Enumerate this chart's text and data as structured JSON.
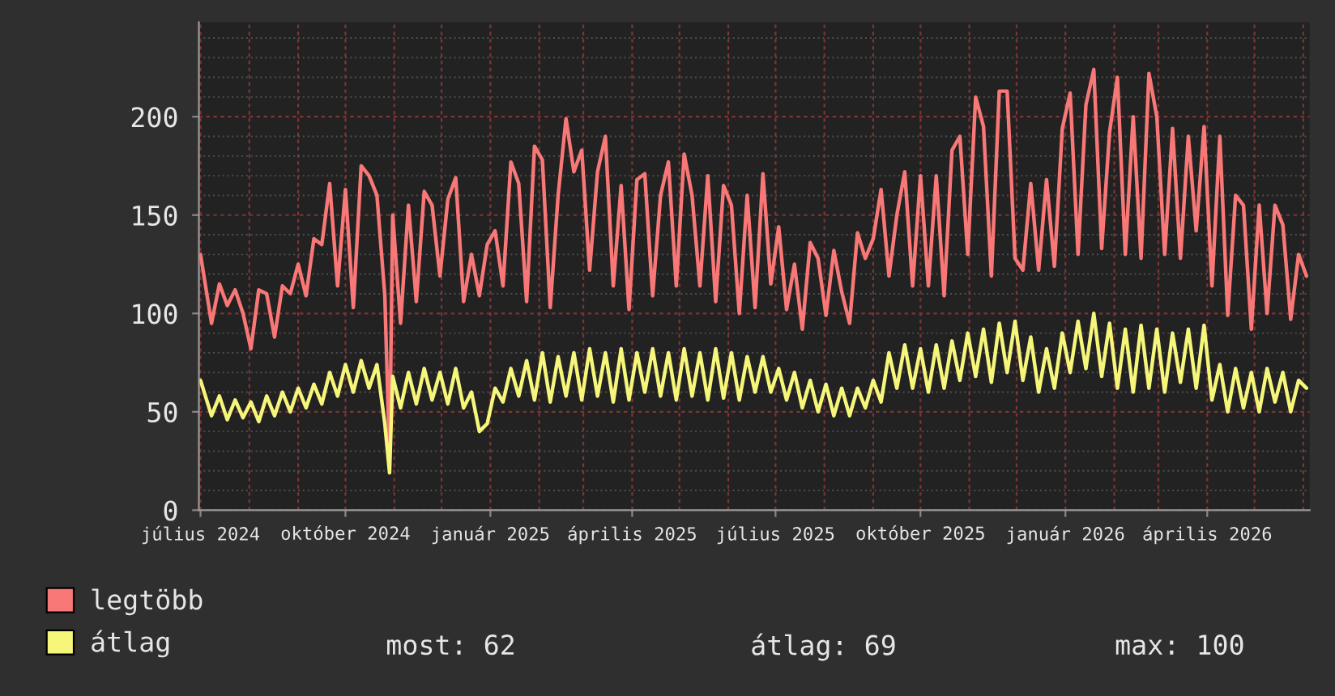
{
  "chart_data": {
    "type": "line",
    "x": [
      "2024-07-01",
      "2024-07-08",
      "2024-07-13",
      "2024-07-18",
      "2024-07-23",
      "2024-07-28",
      "2024-08-02",
      "2024-08-07",
      "2024-08-12",
      "2024-08-17",
      "2024-08-22",
      "2024-08-27",
      "2024-09-01",
      "2024-09-06",
      "2024-09-11",
      "2024-09-16",
      "2024-09-21",
      "2024-09-26",
      "2024-10-01",
      "2024-10-06",
      "2024-10-11",
      "2024-10-16",
      "2024-10-21",
      "2024-10-26",
      "2024-10-29",
      "2024-10-31",
      "2024-11-05",
      "2024-11-10",
      "2024-11-15",
      "2024-11-20",
      "2024-11-25",
      "2024-11-30",
      "2024-12-05",
      "2024-12-10",
      "2024-12-15",
      "2024-12-20",
      "2024-12-25",
      "2024-12-30",
      "2025-01-04",
      "2025-01-09",
      "2025-01-14",
      "2025-01-19",
      "2025-01-24",
      "2025-01-29",
      "2025-02-03",
      "2025-02-08",
      "2025-02-13",
      "2025-02-18",
      "2025-02-23",
      "2025-02-28",
      "2025-03-05",
      "2025-03-10",
      "2025-03-15",
      "2025-03-20",
      "2025-03-25",
      "2025-03-30",
      "2025-04-04",
      "2025-04-09",
      "2025-04-14",
      "2025-04-19",
      "2025-04-24",
      "2025-04-29",
      "2025-05-04",
      "2025-05-09",
      "2025-05-14",
      "2025-05-19",
      "2025-05-24",
      "2025-05-29",
      "2025-06-03",
      "2025-06-08",
      "2025-06-13",
      "2025-06-18",
      "2025-06-23",
      "2025-06-28",
      "2025-07-03",
      "2025-07-08",
      "2025-07-13",
      "2025-07-18",
      "2025-07-23",
      "2025-07-28",
      "2025-08-02",
      "2025-08-07",
      "2025-08-12",
      "2025-08-17",
      "2025-08-22",
      "2025-08-27",
      "2025-09-01",
      "2025-09-06",
      "2025-09-11",
      "2025-09-16",
      "2025-09-21",
      "2025-09-26",
      "2025-10-01",
      "2025-10-06",
      "2025-10-11",
      "2025-10-16",
      "2025-10-21",
      "2025-10-26",
      "2025-10-31",
      "2025-11-05",
      "2025-11-10",
      "2025-11-15",
      "2025-11-20",
      "2025-11-25",
      "2025-11-30",
      "2025-12-05",
      "2025-12-10",
      "2025-12-15",
      "2025-12-20",
      "2025-12-25",
      "2025-12-30",
      "2026-01-04",
      "2026-01-09",
      "2026-01-14",
      "2026-01-19",
      "2026-01-24",
      "2026-01-29",
      "2026-02-03",
      "2026-02-08",
      "2026-02-13",
      "2026-02-18",
      "2026-02-23",
      "2026-02-28",
      "2026-03-05",
      "2026-03-10",
      "2026-03-15",
      "2026-03-20",
      "2026-03-25",
      "2026-03-30",
      "2026-04-04",
      "2026-04-09",
      "2026-04-14",
      "2026-04-19",
      "2026-04-24",
      "2026-04-29",
      "2026-05-04",
      "2026-05-09",
      "2026-05-14",
      "2026-05-19",
      "2026-05-24",
      "2026-05-29",
      "2026-06-03"
    ],
    "series": [
      {
        "name": "legtöbb",
        "color": "#f87777",
        "values": [
          130,
          95,
          115,
          104,
          112,
          100,
          82,
          112,
          110,
          88,
          114,
          110,
          125,
          109,
          138,
          135,
          166,
          114,
          163,
          103,
          175,
          170,
          160,
          109,
          26,
          150,
          95,
          155,
          106,
          162,
          155,
          119,
          158,
          169,
          106,
          130,
          109,
          135,
          142,
          114,
          177,
          166,
          106,
          185,
          178,
          103,
          160,
          199,
          172,
          183,
          122,
          172,
          190,
          114,
          165,
          102,
          168,
          171,
          109,
          160,
          177,
          114,
          181,
          160,
          114,
          170,
          106,
          165,
          155,
          100,
          160,
          103,
          171,
          115,
          144,
          102,
          125,
          92,
          136,
          128,
          99,
          132,
          111,
          95,
          141,
          128,
          138,
          163,
          119,
          150,
          172,
          114,
          170,
          114,
          170,
          109,
          183,
          190,
          130,
          210,
          195,
          119,
          213,
          213,
          128,
          122,
          166,
          122,
          168,
          124,
          194,
          212,
          130,
          206,
          224,
          133,
          192,
          220,
          130,
          200,
          128,
          222,
          200,
          130,
          194,
          128,
          190,
          142,
          195,
          114,
          190,
          99,
          160,
          155,
          92,
          155,
          100,
          155,
          145,
          97,
          130,
          119
        ]
      },
      {
        "name": "átlag",
        "color": "#f6f67a",
        "values": [
          66,
          48,
          58,
          46,
          56,
          47,
          55,
          45,
          58,
          48,
          60,
          50,
          62,
          52,
          64,
          54,
          70,
          58,
          74,
          60,
          76,
          62,
          74,
          44,
          19,
          68,
          52,
          70,
          54,
          72,
          56,
          70,
          54,
          72,
          52,
          60,
          40,
          44,
          62,
          55,
          72,
          58,
          76,
          56,
          80,
          55,
          78,
          58,
          80,
          56,
          82,
          58,
          80,
          55,
          82,
          56,
          80,
          60,
          82,
          58,
          80,
          56,
          82,
          58,
          80,
          56,
          82,
          57,
          80,
          56,
          78,
          60,
          78,
          60,
          72,
          56,
          70,
          52,
          66,
          50,
          64,
          48,
          62,
          48,
          62,
          52,
          66,
          55,
          80,
          62,
          84,
          62,
          82,
          60,
          84,
          62,
          86,
          66,
          90,
          68,
          92,
          65,
          95,
          70,
          96,
          66,
          88,
          60,
          82,
          62,
          90,
          70,
          96,
          72,
          100,
          68,
          95,
          62,
          92,
          60,
          94,
          62,
          92,
          60,
          90,
          65,
          92,
          62,
          94,
          56,
          74,
          50,
          72,
          52,
          70,
          50,
          72,
          55,
          70,
          50,
          66,
          62
        ]
      }
    ],
    "xlim": [
      "2024-06-30",
      "2026-06-05"
    ],
    "xticks": [
      {
        "value": "2024-07-01",
        "label": "július 2024"
      },
      {
        "value": "2024-08-01",
        "label": null
      },
      {
        "value": "2024-09-01",
        "label": null
      },
      {
        "value": "2024-10-01",
        "label": "október 2024"
      },
      {
        "value": "2024-11-01",
        "label": null
      },
      {
        "value": "2024-12-01",
        "label": null
      },
      {
        "value": "2025-01-01",
        "label": "január 2025"
      },
      {
        "value": "2025-02-01",
        "label": null
      },
      {
        "value": "2025-03-01",
        "label": null
      },
      {
        "value": "2025-04-01",
        "label": "április 2025"
      },
      {
        "value": "2025-05-01",
        "label": null
      },
      {
        "value": "2025-06-01",
        "label": null
      },
      {
        "value": "2025-07-01",
        "label": "július 2025"
      },
      {
        "value": "2025-08-01",
        "label": null
      },
      {
        "value": "2025-09-01",
        "label": null
      },
      {
        "value": "2025-10-01",
        "label": "október 2025"
      },
      {
        "value": "2025-11-01",
        "label": null
      },
      {
        "value": "2025-12-01",
        "label": null
      },
      {
        "value": "2026-01-01",
        "label": "január 2026"
      },
      {
        "value": "2026-02-01",
        "label": null
      },
      {
        "value": "2026-03-01",
        "label": null
      },
      {
        "value": "2026-04-01",
        "label": "április 2026"
      },
      {
        "value": "2026-05-01",
        "label": null
      },
      {
        "value": "2026-06-01",
        "label": null
      }
    ],
    "ylim": [
      0,
      248
    ],
    "yticks": [
      0,
      {
        "value": 10,
        "label": null
      },
      {
        "value": 20,
        "label": null
      },
      {
        "value": 30,
        "label": null
      },
      {
        "value": 40,
        "label": null
      },
      50,
      {
        "value": 60,
        "label": null
      },
      {
        "value": 70,
        "label": null
      },
      {
        "value": 80,
        "label": null
      },
      {
        "value": 90,
        "label": null
      },
      100,
      {
        "value": 110,
        "label": null
      },
      {
        "value": 120,
        "label": null
      },
      {
        "value": 130,
        "label": null
      },
      {
        "value": 140,
        "label": null
      },
      150,
      {
        "value": 160,
        "label": null
      },
      {
        "value": 170,
        "label": null
      },
      {
        "value": 180,
        "label": null
      },
      {
        "value": 190,
        "label": null
      },
      200,
      {
        "value": 210,
        "label": null
      },
      {
        "value": 220,
        "label": null
      },
      {
        "value": 230,
        "label": null
      },
      {
        "value": 240,
        "label": null
      }
    ],
    "grid": true,
    "legend": "bottom",
    "annotations": [
      "most: 62",
      "átlag: 69",
      "max: 100"
    ]
  }
}
